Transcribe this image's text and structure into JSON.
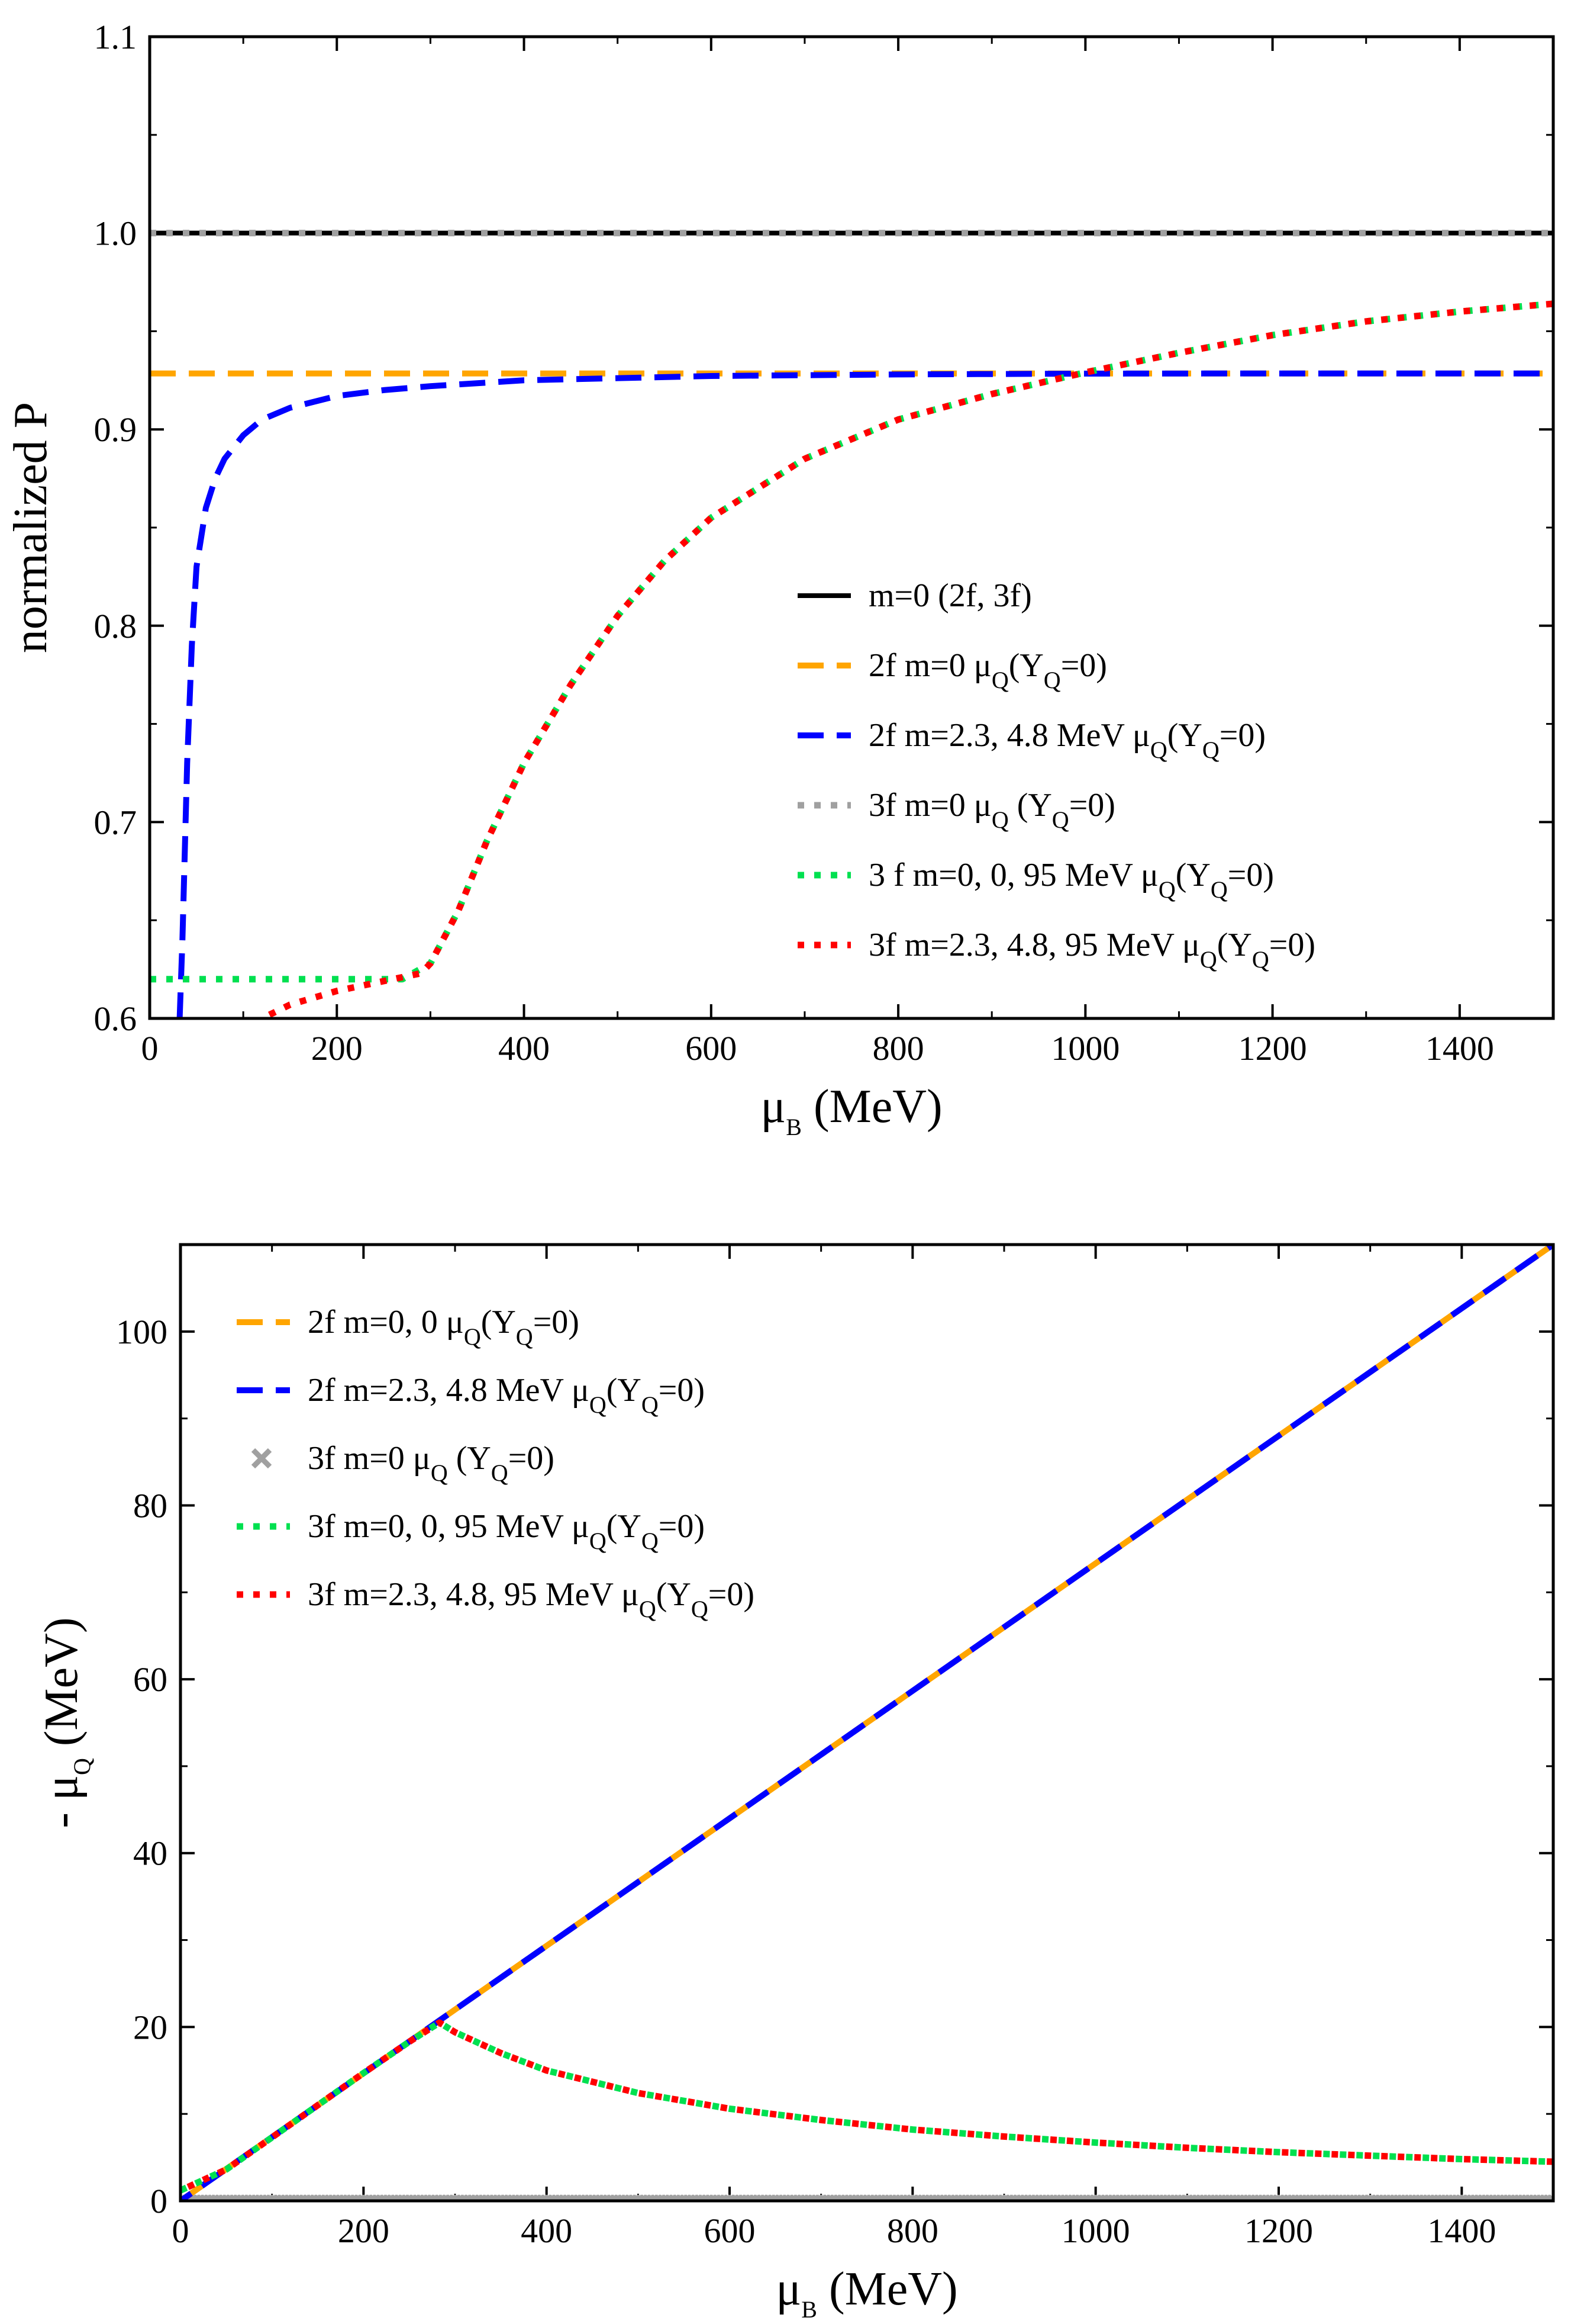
{
  "colors": {
    "black": "#000000",
    "orange": "#FFA500",
    "blue": "#0000FF",
    "gray": "#A0A0A0",
    "green": "#00E050",
    "red": "#FF0000"
  },
  "chart_data": [
    {
      "type": "line",
      "title": "",
      "xlabel": "μB (MeV)",
      "ylabel": "normalized P",
      "xlim": [
        0,
        1500
      ],
      "ylim": [
        0.6,
        1.1
      ],
      "xticks": [
        "0",
        "200",
        "400",
        "600",
        "800",
        "1000",
        "1200",
        "1400"
      ],
      "yticks": [
        "0.6",
        "0.7",
        "0.8",
        "0.9",
        "1.0",
        "1.1"
      ],
      "legend_position": "center-right",
      "series": [
        {
          "name": "m=0 (2f, 3f)",
          "color": "#000000",
          "style": "solid",
          "x": [
            0,
            1500
          ],
          "y": [
            1.0,
            1.0
          ]
        },
        {
          "name": "3f m=0 μQ (YQ=0)",
          "color": "#A0A0A0",
          "style": "dotted",
          "x": [
            0,
            1500
          ],
          "y": [
            1.0,
            1.0
          ]
        },
        {
          "name": "2f m=0 μQ(YQ=0)",
          "color": "#FFA500",
          "style": "dashed",
          "x": [
            0,
            1500
          ],
          "y": [
            0.9285,
            0.9285
          ]
        },
        {
          "name": "2f m=2.3, 4.8 MeV μQ(YQ=0)",
          "color": "#0000FF",
          "style": "dashed",
          "x": [
            32,
            35,
            40,
            45,
            50,
            60,
            70,
            80,
            100,
            120,
            150,
            200,
            250,
            300,
            400,
            600,
            800,
            1000,
            1200,
            1500
          ],
          "y": [
            0.6,
            0.64,
            0.73,
            0.79,
            0.83,
            0.86,
            0.875,
            0.885,
            0.897,
            0.905,
            0.911,
            0.917,
            0.92,
            0.922,
            0.925,
            0.9272,
            0.928,
            0.9284,
            0.9285,
            0.9285
          ]
        },
        {
          "name": "3 f m=0, 0, 95 MeV μQ(YQ=0)",
          "color": "#00E050",
          "style": "dotted",
          "x": [
            0,
            270,
            300,
            330,
            360,
            400,
            450,
            500,
            550,
            600,
            700,
            800,
            900,
            1000,
            1100,
            1200,
            1300,
            1400,
            1500
          ],
          "y": [
            0.62,
            0.62,
            0.628,
            0.655,
            0.69,
            0.73,
            0.77,
            0.805,
            0.833,
            0.855,
            0.885,
            0.905,
            0.918,
            0.929,
            0.939,
            0.948,
            0.955,
            0.96,
            0.964
          ]
        },
        {
          "name": "3f m=2.3, 4.8, 95 MeV μQ(YQ=0)",
          "color": "#FF0000",
          "style": "dotted",
          "x": [
            120,
            150,
            200,
            250,
            290,
            300,
            330,
            360,
            400,
            450,
            500,
            550,
            600,
            700,
            800,
            900,
            1000,
            1100,
            1200,
            1300,
            1400,
            1500
          ],
          "y": [
            0.6,
            0.607,
            0.614,
            0.619,
            0.623,
            0.628,
            0.655,
            0.69,
            0.73,
            0.77,
            0.805,
            0.833,
            0.855,
            0.885,
            0.905,
            0.918,
            0.929,
            0.939,
            0.948,
            0.955,
            0.96,
            0.964
          ]
        }
      ]
    },
    {
      "type": "line",
      "title": "",
      "xlabel": "μB (MeV)",
      "ylabel": "- μQ (MeV)",
      "xlim": [
        0,
        1500
      ],
      "ylim": [
        0,
        110
      ],
      "xticks": [
        "0",
        "200",
        "400",
        "600",
        "800",
        "1000",
        "1200",
        "1400"
      ],
      "yticks": [
        "0",
        "20",
        "40",
        "60",
        "80",
        "100"
      ],
      "legend_position": "top-left",
      "series": [
        {
          "name": "2f m=0, 0 μQ(YQ=0)",
          "color": "#FFA500",
          "style": "dashed",
          "x": [
            0,
            1500
          ],
          "y": [
            0,
            110
          ]
        },
        {
          "name": "2f m=2.3, 4.8 MeV μQ(YQ=0)",
          "color": "#0000FF",
          "style": "dashed",
          "x": [
            0,
            1500
          ],
          "y": [
            0,
            110
          ]
        },
        {
          "name": "3f m=0 μQ (YQ=0)",
          "color": "#A0A0A0",
          "style": "cross",
          "x": [
            0,
            1500
          ],
          "y": [
            0,
            0
          ]
        },
        {
          "name": "3f m=0, 0, 95 MeV μQ(YQ=0)",
          "color": "#00E050",
          "style": "dotted",
          "x": [
            0,
            50,
            100,
            150,
            200,
            250,
            283,
            300,
            350,
            400,
            500,
            600,
            700,
            800,
            900,
            1000,
            1100,
            1200,
            1300,
            1400,
            1500
          ],
          "y": [
            1.2,
            3.6,
            7.3,
            11,
            14.7,
            18.3,
            20.5,
            19.4,
            17,
            15,
            12.4,
            10.6,
            9.3,
            8.2,
            7.4,
            6.7,
            6.1,
            5.6,
            5.2,
            4.8,
            4.5
          ]
        },
        {
          "name": "3f m=2.3, 4.8, 95 MeV μQ(YQ=0)",
          "color": "#FF0000",
          "style": "dotted",
          "x": [
            0,
            50,
            100,
            150,
            200,
            250,
            283,
            300,
            350,
            400,
            500,
            600,
            700,
            800,
            900,
            1000,
            1100,
            1200,
            1300,
            1400,
            1500
          ],
          "y": [
            1.2,
            3.6,
            7.3,
            11,
            14.7,
            18.3,
            20.5,
            19.4,
            17,
            15,
            12.4,
            10.6,
            9.3,
            8.2,
            7.4,
            6.7,
            6.1,
            5.6,
            5.2,
            4.8,
            4.5
          ]
        }
      ]
    }
  ],
  "legend_labels": {
    "top": [
      {
        "pre": "m=0 (2f, 3f)",
        "parts": []
      },
      {
        "pre": "2f m=0 μ",
        "parts": [
          [
            "sub",
            "Q"
          ],
          [
            "txt",
            "(Y"
          ],
          [
            "sub",
            "Q"
          ],
          [
            "txt",
            "=0)"
          ]
        ]
      },
      {
        "pre": "2f m=2.3, 4.8 MeV μ",
        "parts": [
          [
            "sub",
            "Q"
          ],
          [
            "txt",
            "(Y"
          ],
          [
            "sub",
            "Q"
          ],
          [
            "txt",
            "=0)"
          ]
        ]
      },
      {
        "pre": "3f m=0 μ",
        "parts": [
          [
            "sub",
            "Q"
          ],
          [
            "txt",
            " (Y"
          ],
          [
            "sub",
            "Q"
          ],
          [
            "txt",
            "=0)"
          ]
        ]
      },
      {
        "pre": "3 f m=0, 0, 95 MeV μ",
        "parts": [
          [
            "sub",
            "Q"
          ],
          [
            "txt",
            "(Y"
          ],
          [
            "sub",
            "Q"
          ],
          [
            "txt",
            "=0)"
          ]
        ]
      },
      {
        "pre": "3f m=2.3, 4.8, 95 MeV μ",
        "parts": [
          [
            "sub",
            "Q"
          ],
          [
            "txt",
            "(Y"
          ],
          [
            "sub",
            "Q"
          ],
          [
            "txt",
            "=0)"
          ]
        ]
      }
    ],
    "bottom": [
      {
        "pre": "2f m=0, 0 μ",
        "parts": [
          [
            "sub",
            "Q"
          ],
          [
            "txt",
            "(Y"
          ],
          [
            "sub",
            "Q"
          ],
          [
            "txt",
            "=0)"
          ]
        ]
      },
      {
        "pre": "2f m=2.3, 4.8 MeV μ",
        "parts": [
          [
            "sub",
            "Q"
          ],
          [
            "txt",
            "(Y"
          ],
          [
            "sub",
            "Q"
          ],
          [
            "txt",
            "=0)"
          ]
        ]
      },
      {
        "pre": "3f m=0 μ",
        "parts": [
          [
            "sub",
            "Q"
          ],
          [
            "txt",
            " (Y"
          ],
          [
            "sub",
            "Q"
          ],
          [
            "txt",
            "=0)"
          ]
        ]
      },
      {
        "pre": "3f m=0, 0, 95 MeV μ",
        "parts": [
          [
            "sub",
            "Q"
          ],
          [
            "txt",
            "(Y"
          ],
          [
            "sub",
            "Q"
          ],
          [
            "txt",
            "=0)"
          ]
        ]
      },
      {
        "pre": "3f m=2.3, 4.8, 95 MeV μ",
        "parts": [
          [
            "sub",
            "Q"
          ],
          [
            "txt",
            "(Y"
          ],
          [
            "sub",
            "Q"
          ],
          [
            "txt",
            "=0)"
          ]
        ]
      }
    ]
  },
  "axis_titles": {
    "top_x": {
      "main": "μ",
      "sub": "B",
      "rest": " (MeV)"
    },
    "top_y": "normalized P",
    "bottom_x": {
      "main": "μ",
      "sub": "B",
      "rest": " (MeV)"
    },
    "bottom_y": {
      "pre": "- μ",
      "sub": "Q",
      "rest": " (MeV)"
    }
  }
}
